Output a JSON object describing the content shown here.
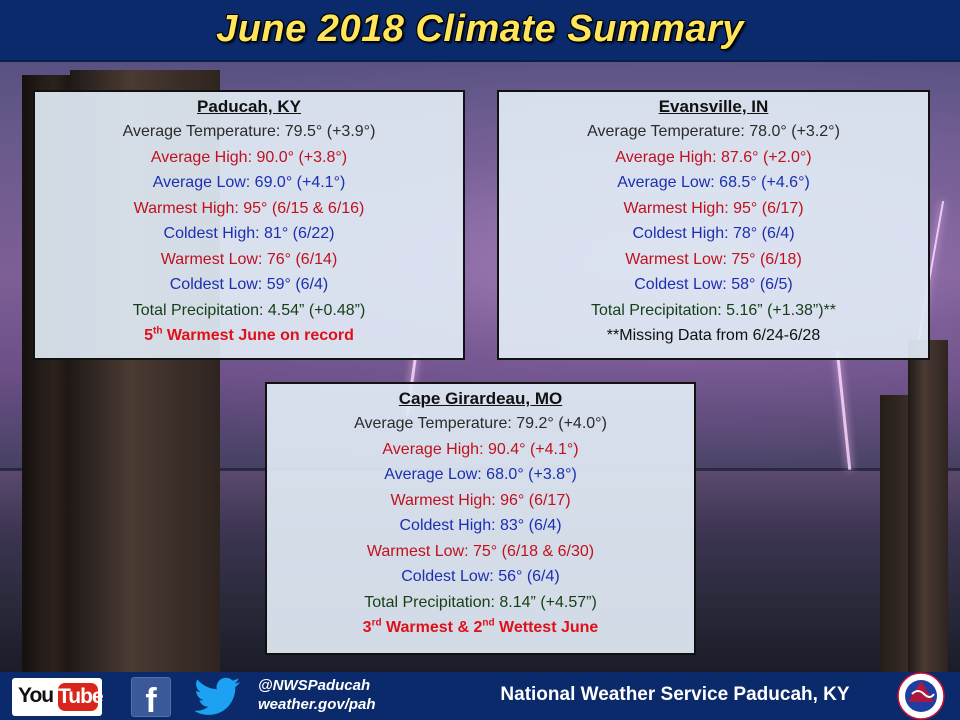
{
  "header": {
    "title": "June 2018 Climate Summary"
  },
  "paducah": {
    "name": "Paducah, KY",
    "avg_temp": "Average Temperature: 79.5° (+3.9°)",
    "avg_high": "Average High: 90.0° (+3.8°)",
    "avg_low": "Average Low: 69.0° (+4.1°)",
    "warmest_high": "Warmest High: 95° (6/15 & 6/16)",
    "coldest_high": "Coldest High: 81° (6/22)",
    "warmest_low": "Warmest Low: 76° (6/14)",
    "coldest_low": "Coldest Low: 59° (6/4)",
    "precip": "Total Precipitation: 4.54” (+0.48”)",
    "record_num": "5",
    "record_sup": "th",
    "record_text": " Warmest June on record"
  },
  "evansville": {
    "name": "Evansville, IN",
    "avg_temp": "Average Temperature: 78.0° (+3.2°)",
    "avg_high": "Average High: 87.6° (+2.0°)",
    "avg_low": "Average Low: 68.5° (+4.6°)",
    "warmest_high": "Warmest High: 95° (6/17)",
    "coldest_high": "Coldest High: 78° (6/4)",
    "warmest_low": "Warmest Low: 75° (6/18)",
    "coldest_low": "Coldest Low: 58° (6/5)",
    "precip": "Total Precipitation: 5.16” (+1.38”)**",
    "note": "**Missing Data from 6/24-6/28"
  },
  "cape": {
    "name": "Cape Girardeau, MO",
    "avg_temp": "Average Temperature: 79.2° (+4.0°)",
    "avg_high": "Average High: 90.4° (+4.1°)",
    "avg_low": "Average Low: 68.0° (+3.8°)",
    "warmest_high": "Warmest High: 96° (6/17)",
    "coldest_high": "Coldest High: 83° (6/4)",
    "warmest_low": "Warmest Low: 75° (6/18 & 6/30)",
    "coldest_low": "Coldest Low: 56° (6/4)",
    "precip": "Total Precipitation: 8.14” (+4.57”)",
    "record_num1": "3",
    "record_sup1": "rd",
    "record_mid": " Warmest & 2",
    "record_sup2": "nd",
    "record_end": " Wettest June"
  },
  "footer": {
    "youtube_you": "You",
    "youtube_tube": "Tube",
    "facebook_glyph": "f",
    "handle": "@NWSPaducah",
    "website": "weather.gov/pah",
    "office": "National Weather Service Paducah, KY"
  },
  "colors": {
    "header_bg": "#0b2a6b",
    "title_yellow": "#ffe55c",
    "text_red": "#c0111d",
    "text_blue": "#1c2fb0",
    "text_green": "#173f17"
  },
  "icons": [
    "youtube-icon",
    "facebook-icon",
    "twitter-icon",
    "nws-seal-icon"
  ]
}
